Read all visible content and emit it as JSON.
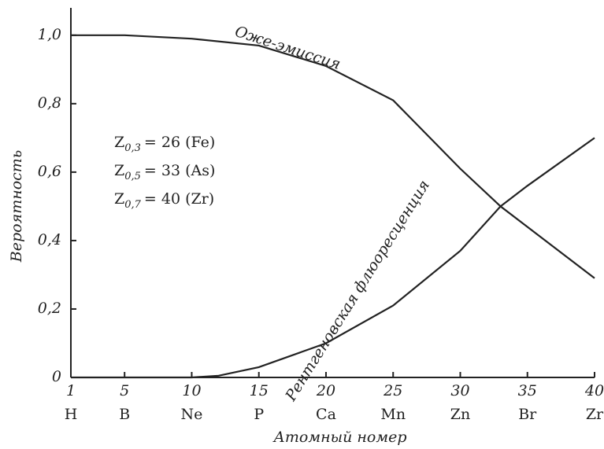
{
  "chart_data": {
    "type": "line",
    "x_label": "Атомный номер",
    "y_label": "Вероятность",
    "xlim": [
      1,
      40
    ],
    "ylim": [
      0,
      1.08
    ],
    "xticks": [
      1,
      5,
      10,
      15,
      20,
      25,
      30,
      35,
      40
    ],
    "xtick_symbols": [
      "H",
      "B",
      "Ne",
      "P",
      "Ca",
      "Mn",
      "Zn",
      "Br",
      "Zr"
    ],
    "yticks": [
      0,
      {
        "value": 0.2,
        "label": "0,2"
      },
      {
        "value": 0.4,
        "label": "0,4"
      },
      {
        "value": 0.6,
        "label": "0,6"
      },
      {
        "value": 0.8,
        "label": "0,8"
      },
      {
        "value": 1.0,
        "label": "1,0"
      }
    ],
    "series": [
      {
        "name": "Оже-эмиссия",
        "color": "#222222",
        "x": [
          1,
          5,
          10,
          15,
          20,
          25,
          30,
          33,
          35,
          40
        ],
        "values": [
          1.0,
          1.0,
          0.99,
          0.97,
          0.91,
          0.81,
          0.61,
          0.5,
          0.44,
          0.29
        ]
      },
      {
        "name": "Рентгеновская флюоресценция",
        "color": "#222222",
        "x": [
          1,
          5,
          10,
          12,
          15,
          20,
          25,
          30,
          33,
          35,
          40
        ],
        "values": [
          0,
          0,
          0,
          0.005,
          0.03,
          0.1,
          0.21,
          0.37,
          0.5,
          0.56,
          0.7
        ]
      }
    ],
    "annotations": [
      {
        "symbol": "Z",
        "subscript": "0,3",
        "text": "= 26 (Fe)"
      },
      {
        "symbol": "Z",
        "subscript": "0,5",
        "text": "= 33 (As)"
      },
      {
        "symbol": "Z",
        "subscript": "0,7",
        "text": "= 40 (Zr)"
      }
    ]
  }
}
